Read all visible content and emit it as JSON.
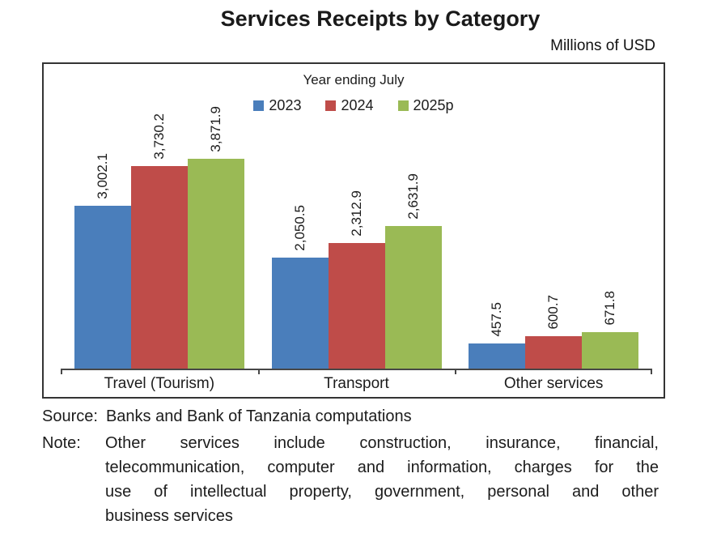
{
  "title": "Services Receipts by Category",
  "units_label": "Millions of USD",
  "chart_data": {
    "type": "bar",
    "title": "Services Receipts by Category",
    "subtitle": "Millions of USD",
    "legend_title": "Year ending July",
    "legend_position": "top-center",
    "grid": false,
    "categories": [
      "Travel (Tourism)",
      "Transport",
      "Other services"
    ],
    "series": [
      {
        "name": "2023",
        "color": "#4A7EBB",
        "values": [
          3002.1,
          2050.5,
          457.5
        ],
        "labels": [
          "3,002.1",
          "2,050.5",
          "457.5"
        ]
      },
      {
        "name": "2024",
        "color": "#BF4C49",
        "values": [
          3730.2,
          2312.9,
          600.7
        ],
        "labels": [
          "3,730.2",
          "2,312.9",
          "600.7"
        ]
      },
      {
        "name": "2025p",
        "color": "#9ABA55",
        "values": [
          3871.9,
          2631.9,
          671.8
        ],
        "labels": [
          "3,871.9",
          "2,631.9",
          "671.8"
        ]
      }
    ],
    "ylim": [
      0,
      4000
    ],
    "axis_color": "#474747"
  },
  "footer": {
    "source_label": "Source:",
    "source_text": "Banks and Bank of Tanzania computations",
    "note_label": "Note:",
    "note_text": "Other services include construction, insurance, financial, telecommunication, computer and information, charges for the use of intellectual property, government, personal and other business services",
    "note_lines": [
      "Other services include construction, insurance, financial,",
      "telecommunication, computer and information, charges for the",
      "use of intellectual property, government, personal and other",
      "business services"
    ]
  }
}
